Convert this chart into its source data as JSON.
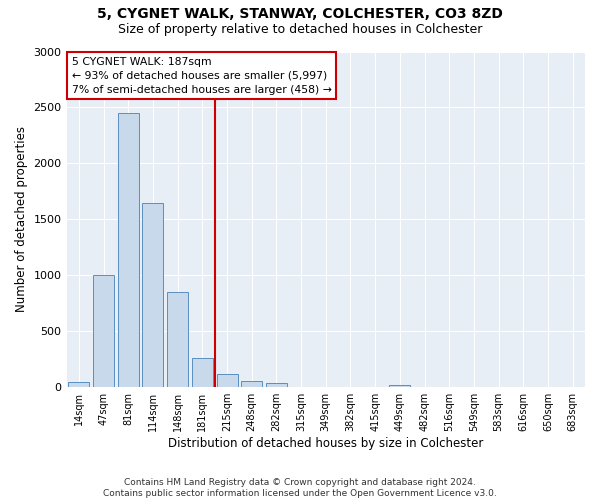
{
  "title1": "5, CYGNET WALK, STANWAY, COLCHESTER, CO3 8ZD",
  "title2": "Size of property relative to detached houses in Colchester",
  "xlabel": "Distribution of detached houses by size in Colchester",
  "ylabel": "Number of detached properties",
  "categories": [
    "14sqm",
    "47sqm",
    "81sqm",
    "114sqm",
    "148sqm",
    "181sqm",
    "215sqm",
    "248sqm",
    "282sqm",
    "315sqm",
    "349sqm",
    "382sqm",
    "415sqm",
    "449sqm",
    "482sqm",
    "516sqm",
    "549sqm",
    "583sqm",
    "616sqm",
    "650sqm",
    "683sqm"
  ],
  "values": [
    50,
    1000,
    2450,
    1650,
    850,
    260,
    120,
    55,
    40,
    0,
    0,
    0,
    0,
    20,
    0,
    0,
    0,
    0,
    0,
    0,
    0
  ],
  "bar_color": "#c8d9eb",
  "bar_edge_color": "#5a8fc0",
  "vline_x": 5.5,
  "vline_color": "#cc0000",
  "annotation_text": "5 CYGNET WALK: 187sqm\n← 93% of detached houses are smaller (5,997)\n7% of semi-detached houses are larger (458) →",
  "annotation_box_color": "white",
  "annotation_box_edge": "#cc0000",
  "ylim": [
    0,
    3000
  ],
  "yticks": [
    0,
    500,
    1000,
    1500,
    2000,
    2500,
    3000
  ],
  "bg_color": "#e8eef5",
  "footer": "Contains HM Land Registry data © Crown copyright and database right 2024.\nContains public sector information licensed under the Open Government Licence v3.0.",
  "title1_fontsize": 10,
  "title2_fontsize": 9,
  "xlabel_fontsize": 8.5,
  "ylabel_fontsize": 8.5
}
